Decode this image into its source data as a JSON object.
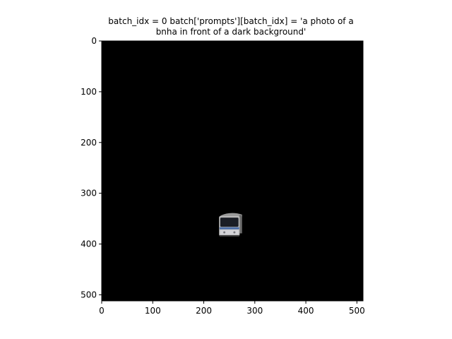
{
  "chart_data": {
    "type": "image",
    "title_lines": [
      "batch_idx = 0 batch['prompts'][batch_idx] = 'a photo of a",
      "bnha in front of a dark background'"
    ],
    "xlabel": "",
    "ylabel": "",
    "xlim": [
      0,
      512
    ],
    "ylim": [
      512,
      0
    ],
    "x_ticks": [
      "0",
      "100",
      "200",
      "300",
      "400",
      "500"
    ],
    "y_ticks": [
      "0",
      "100",
      "200",
      "300",
      "400",
      "500"
    ],
    "x_tick_values": [
      0,
      100,
      200,
      300,
      400,
      500
    ],
    "y_tick_values": [
      0,
      100,
      200,
      300,
      400,
      500
    ],
    "grid": false,
    "image_background": "#000000",
    "object": {
      "name": "bus-front-view",
      "x_range": [
        229,
        276
      ],
      "y_range": [
        336,
        386
      ]
    }
  }
}
